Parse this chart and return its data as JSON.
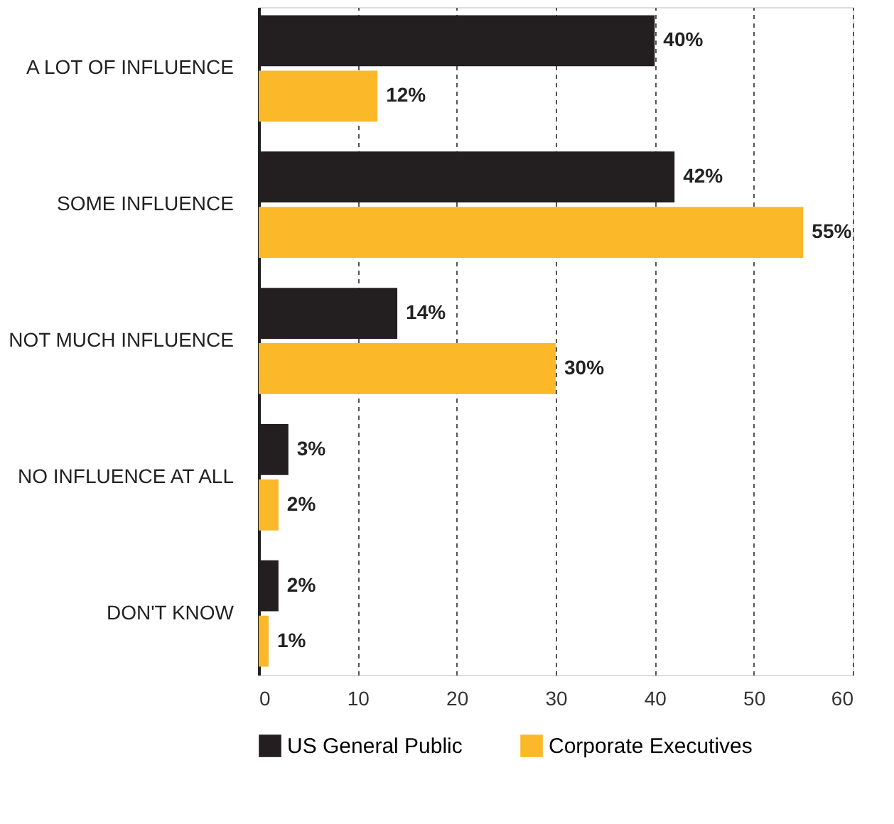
{
  "chart_data": {
    "type": "bar",
    "orientation": "horizontal",
    "categories": [
      "A LOT OF INFLUENCE",
      "SOME INFLUENCE",
      "NOT MUCH INFLUENCE",
      "NO INFLUENCE AT ALL",
      "DON'T KNOW"
    ],
    "series": [
      {
        "name": "US General Public",
        "color": "#231f20",
        "values": [
          40,
          42,
          14,
          3,
          2
        ],
        "value_labels": [
          "40%",
          "42%",
          "14%",
          "3%",
          "2%"
        ]
      },
      {
        "name": "Corporate Executives",
        "color": "#fbb829",
        "values": [
          12,
          55,
          30,
          2,
          1
        ],
        "value_labels": [
          "12%",
          "55%",
          "30%",
          "2%",
          "1%"
        ]
      }
    ],
    "xlim": [
      0,
      60
    ],
    "xticks": [
      0,
      10,
      20,
      30,
      40,
      50,
      60
    ],
    "grid": "x",
    "legend": "bottom"
  }
}
